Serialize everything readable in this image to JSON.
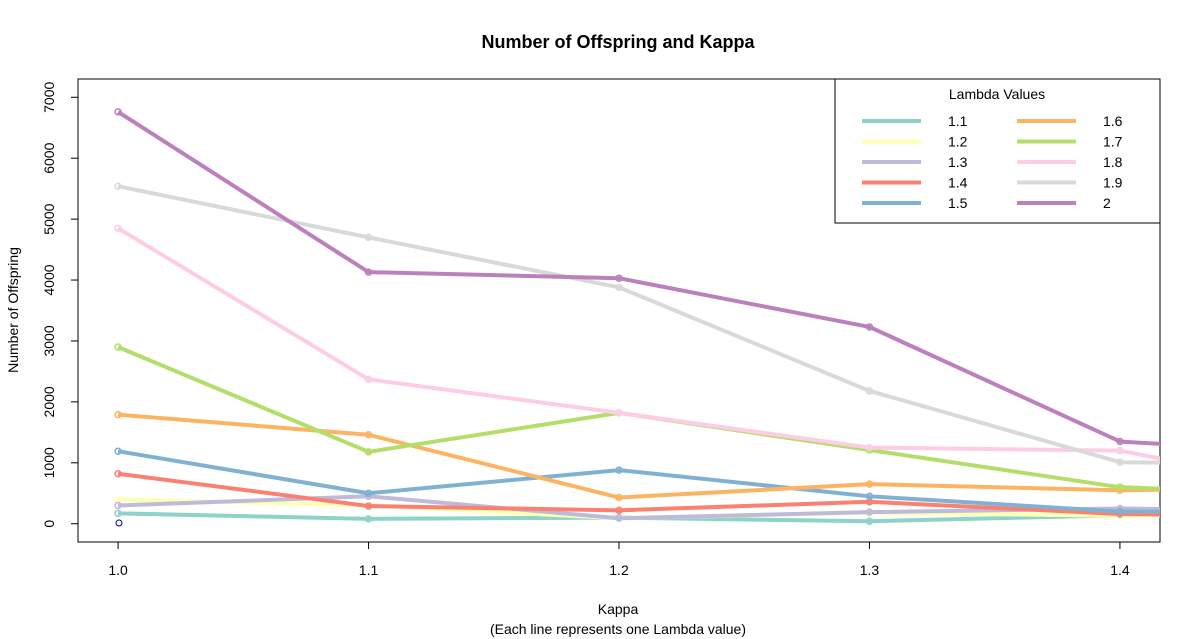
{
  "chart_data": {
    "type": "line",
    "title": "Number of Offspring and Kappa",
    "xlabel": "Kappa",
    "xlabel_sub": "(Each line represents one Lambda value)",
    "ylabel": "Number of Offspring",
    "x": [
      1.0,
      1.1,
      1.2,
      1.3,
      1.4,
      1.42
    ],
    "xticks": [
      "1.0",
      "1.1",
      "1.2",
      "1.3",
      "1.4"
    ],
    "yticks": [
      "0",
      "1000",
      "2000",
      "3000",
      "4000",
      "5000",
      "6000",
      "7000"
    ],
    "xlim": [
      0.984,
      1.416
    ],
    "ylim": [
      -300,
      7300
    ],
    "legend": {
      "title": "Lambda Values",
      "position": "top-right",
      "columns": 2
    },
    "series": [
      {
        "name": "1.1",
        "color": "#8DD3C7",
        "values": [
          170,
          80,
          100,
          40,
          140,
          170
        ]
      },
      {
        "name": "1.2",
        "color": "#FFFFB3",
        "values": [
          400,
          300,
          90,
          180,
          130,
          140
        ]
      },
      {
        "name": "1.3",
        "color": "#BEBADA",
        "values": [
          300,
          450,
          90,
          190,
          250,
          240
        ]
      },
      {
        "name": "1.4",
        "color": "#FB8072",
        "values": [
          820,
          290,
          220,
          360,
          160,
          150
        ]
      },
      {
        "name": "1.5",
        "color": "#80B1D3",
        "values": [
          1190,
          500,
          880,
          450,
          200,
          200
        ]
      },
      {
        "name": "1.6",
        "color": "#FDB462",
        "values": [
          1790,
          1460,
          430,
          650,
          550,
          560
        ]
      },
      {
        "name": "1.7",
        "color": "#B3DE69",
        "values": [
          2900,
          1180,
          1820,
          1210,
          600,
          570
        ]
      },
      {
        "name": "1.8",
        "color": "#FCCDE5",
        "values": [
          4850,
          2370,
          1820,
          1250,
          1200,
          1040
        ]
      },
      {
        "name": "1.9",
        "color": "#D9D9D9",
        "values": [
          5540,
          4700,
          3880,
          2180,
          1010,
          1000
        ]
      },
      {
        "name": "2",
        "color": "#BC80BD",
        "values": [
          6760,
          4130,
          4030,
          3230,
          1350,
          1300
        ]
      }
    ]
  }
}
